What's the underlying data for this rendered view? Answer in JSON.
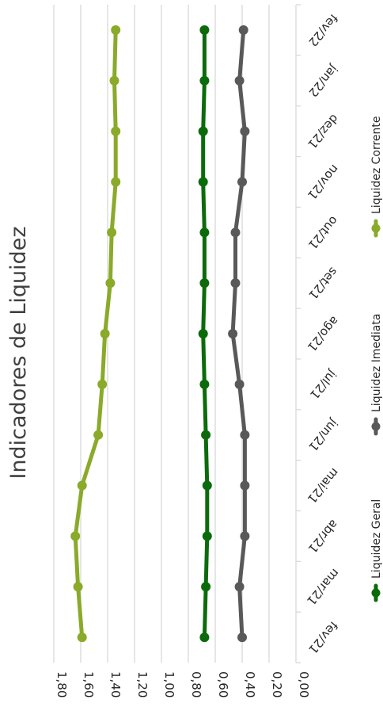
{
  "chart_data": {
    "type": "line",
    "title": "Indicadores de Liquidez",
    "categories": [
      "fev/21",
      "mar/21",
      "abr/21",
      "mai/21",
      "jun/21",
      "jul/21",
      "ago/21",
      "set/21",
      "out/21",
      "nov/21",
      "dez/21",
      "jan/22",
      "fev/22"
    ],
    "ylim": [
      0,
      1.8
    ],
    "yticks": [
      "0,00",
      "0,20",
      "0,40",
      "0,60",
      "0,80",
      "1,00",
      "1,20",
      "1,40",
      "1,60",
      "1,80"
    ],
    "grid": true,
    "legend_position": "right",
    "series": [
      {
        "name": "Liquidez Geral",
        "color": "#0b6b0b",
        "values": [
          0.68,
          0.67,
          0.66,
          0.66,
          0.67,
          0.68,
          0.69,
          0.68,
          0.68,
          0.69,
          0.69,
          0.68,
          0.68
        ]
      },
      {
        "name": "Liquidez  Imediata",
        "color": "#595959",
        "values": [
          0.4,
          0.42,
          0.38,
          0.38,
          0.38,
          0.42,
          0.47,
          0.45,
          0.45,
          0.4,
          0.38,
          0.42,
          0.39
        ]
      },
      {
        "name": "Liquidez Corrente",
        "color": "#8aaa2a",
        "values": [
          1.59,
          1.62,
          1.64,
          1.59,
          1.47,
          1.44,
          1.42,
          1.38,
          1.37,
          1.34,
          1.34,
          1.35,
          1.34
        ]
      }
    ]
  }
}
